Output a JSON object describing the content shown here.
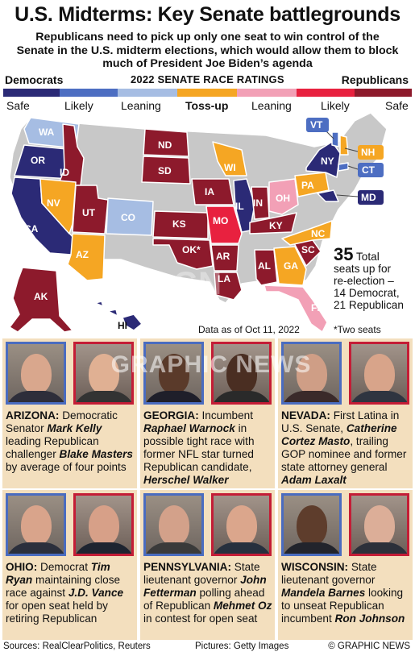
{
  "title": "U.S. Midterms: Key Senate battlegrounds",
  "subtitle": "Republicans need to pick up only one seat to win control of the Senate in the U.S. midterm elections, which would allow them to block much of President Joe Biden’s agenda",
  "legend": {
    "left_head": "Democrats",
    "center_head": "2022 SENATE RACE RATINGS",
    "right_head": "Republicans",
    "categories": [
      {
        "label": "Safe",
        "color": "#2b2a76"
      },
      {
        "label": "Likely",
        "color": "#4d6ec2"
      },
      {
        "label": "Leaning",
        "color": "#a6bde3"
      },
      {
        "label": "Toss-up",
        "color": "#f5a623"
      },
      {
        "label": "Leaning",
        "color": "#f2a0b6"
      },
      {
        "label": "Likely",
        "color": "#e8213f"
      },
      {
        "label": "Safe",
        "color": "#8d1a2c"
      }
    ]
  },
  "map": {
    "states": [
      {
        "abbr": "WA",
        "rating": "Leaning D"
      },
      {
        "abbr": "OR",
        "rating": "Safe D"
      },
      {
        "abbr": "CA",
        "rating": "Safe D"
      },
      {
        "abbr": "ID",
        "rating": "Safe R"
      },
      {
        "abbr": "NV",
        "rating": "Toss-up"
      },
      {
        "abbr": "UT",
        "rating": "Safe R"
      },
      {
        "abbr": "AZ",
        "rating": "Toss-up"
      },
      {
        "abbr": "CO",
        "rating": "Leaning D"
      },
      {
        "abbr": "ND",
        "rating": "Safe R"
      },
      {
        "abbr": "SD",
        "rating": "Safe R"
      },
      {
        "abbr": "KS",
        "rating": "Safe R"
      },
      {
        "abbr": "OK*",
        "rating": "Safe R"
      },
      {
        "abbr": "IA",
        "rating": "Safe R"
      },
      {
        "abbr": "MO",
        "rating": "Likely R"
      },
      {
        "abbr": "AR",
        "rating": "Safe R"
      },
      {
        "abbr": "LA",
        "rating": "Safe R"
      },
      {
        "abbr": "WI",
        "rating": "Toss-up"
      },
      {
        "abbr": "IL",
        "rating": "Safe D"
      },
      {
        "abbr": "IN",
        "rating": "Safe R"
      },
      {
        "abbr": "OH",
        "rating": "Leaning R"
      },
      {
        "abbr": "KY",
        "rating": "Safe R"
      },
      {
        "abbr": "AL",
        "rating": "Safe R"
      },
      {
        "abbr": "GA",
        "rating": "Toss-up"
      },
      {
        "abbr": "SC",
        "rating": "Safe R"
      },
      {
        "abbr": "NC",
        "rating": "Toss-up"
      },
      {
        "abbr": "FL",
        "rating": "Leaning R"
      },
      {
        "abbr": "PA",
        "rating": "Toss-up"
      },
      {
        "abbr": "NY",
        "rating": "Safe D"
      },
      {
        "abbr": "VT",
        "rating": "Likely D"
      },
      {
        "abbr": "NH",
        "rating": "Toss-up"
      },
      {
        "abbr": "CT",
        "rating": "Likely D"
      },
      {
        "abbr": "MD",
        "rating": "Safe D"
      },
      {
        "abbr": "AK",
        "rating": "Safe R"
      },
      {
        "abbr": "HI",
        "rating": "Safe D"
      }
    ]
  },
  "stats": {
    "number": "35",
    "line1": "Total",
    "line2": "seats up for",
    "line3": "re-election –",
    "line4": "14 Democrat,",
    "line5": "21 Republican"
  },
  "as_of": "Data as of Oct 11, 2022",
  "two_seats_note": "*Two seats",
  "races": [
    {
      "state": "ARIZONA:",
      "parts": [
        " Democratic Senator ",
        "Mark Kelly",
        " leading Republican challenger ",
        "Blake Masters",
        " by average of four points"
      ]
    },
    {
      "state": "GEORGIA:",
      "parts": [
        " Incumbent ",
        "Raphael Warnock",
        " in possible tight race with former NFL star turned Republican candidate, ",
        "Herschel Walker",
        ""
      ]
    },
    {
      "state": "NEVADA:",
      "parts": [
        " First Latina in U.S. Senate, ",
        "Catherine Cortez Masto",
        ", trailing GOP nominee and former state attorney general ",
        "Adam Laxalt",
        ""
      ]
    },
    {
      "state": "OHIO:",
      "parts": [
        " Democrat ",
        "Tim Ryan",
        " maintaining close race against ",
        "J.D. Vance",
        " for open seat held by retiring Republican"
      ]
    },
    {
      "state": "PENNSYLVANIA:",
      "parts": [
        " State lieutenant governor ",
        "John Fetterman",
        " polling ahead of Republican ",
        "Mehmet Oz",
        " in contest for open seat"
      ]
    },
    {
      "state": "WISCONSIN:",
      "parts": [
        " State lieutenant governor ",
        "Mandela Barnes",
        " looking to unseat Republican incumbent ",
        "Ron Johnson",
        ""
      ]
    }
  ],
  "watermark": "GRAPHIC NEWS",
  "watermark_logo": "GN",
  "footer": {
    "sources": "Sources: RealClearPolitics, Reuters",
    "pictures": "Pictures: Getty Images",
    "credit": "© GRAPHIC NEWS"
  }
}
